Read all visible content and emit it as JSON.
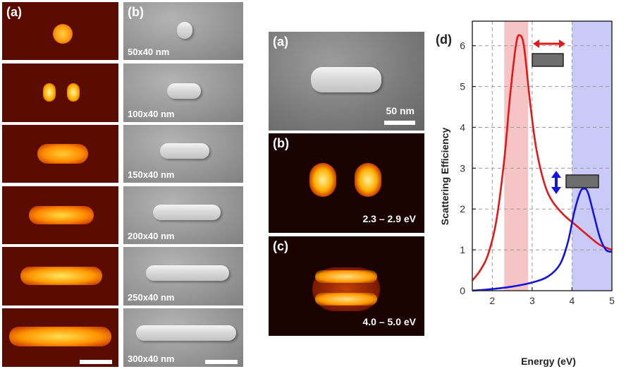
{
  "left_figure": {
    "label_a": "(a)",
    "label_b": "(b)",
    "sizes": [
      "50x40 nm",
      "100x40 nm",
      "150x40 nm",
      "200x40 nm",
      "250x40 nm",
      "300x40 nm"
    ]
  },
  "middle_figure": {
    "label_a": "(a)",
    "label_b": "(b)",
    "label_c": "(c)",
    "scale_label": "50 nm",
    "energy_b": "2.3 – 2.9 eV",
    "energy_c": "4.0 – 5.0 eV"
  },
  "chart_panel_label": "(d)",
  "chart_data": {
    "type": "line",
    "xlabel": "Energy (eV)",
    "ylabel": "Scattering Efficiency",
    "xlim": [
      1.5,
      5
    ],
    "ylim": [
      0,
      6.6
    ],
    "xticks": [
      2,
      3,
      4,
      5
    ],
    "yticks": [
      0,
      1,
      2,
      3,
      4,
      5,
      6
    ],
    "grid": true,
    "shaded_bands": [
      {
        "x": [
          2.3,
          2.9
        ],
        "color": "#f6c4c4"
      },
      {
        "x": [
          4.0,
          5.0
        ],
        "color": "#cacaf8"
      }
    ],
    "series": [
      {
        "color": "#e01818",
        "x": [
          1.5,
          1.7,
          1.9,
          2.1,
          2.3,
          2.45,
          2.6,
          2.7,
          2.8,
          2.95,
          3.1,
          3.3,
          3.5,
          3.8,
          4.1,
          4.4,
          4.7,
          5.0
        ],
        "y": [
          0.25,
          0.5,
          0.9,
          1.7,
          3.2,
          4.8,
          6.05,
          6.25,
          5.95,
          4.6,
          3.5,
          2.65,
          2.2,
          1.85,
          1.6,
          1.35,
          1.12,
          1.0
        ]
      },
      {
        "color": "#1414e0",
        "x": [
          1.5,
          2.0,
          2.5,
          3.0,
          3.4,
          3.7,
          3.9,
          4.05,
          4.2,
          4.3,
          4.4,
          4.55,
          4.7,
          4.85,
          5.0
        ],
        "y": [
          0.0,
          0.04,
          0.1,
          0.2,
          0.35,
          0.65,
          1.2,
          1.9,
          2.4,
          2.5,
          2.4,
          1.85,
          1.3,
          1.0,
          0.95
        ]
      }
    ]
  }
}
